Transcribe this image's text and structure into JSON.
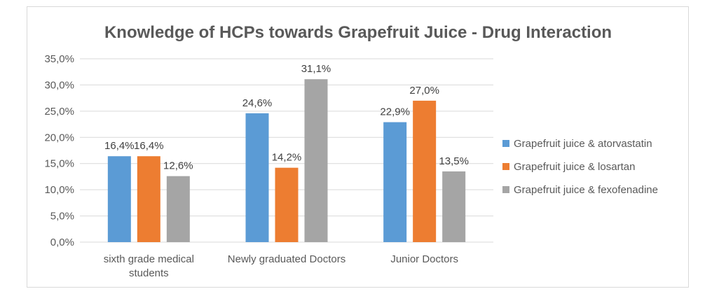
{
  "chart_data": {
    "type": "bar",
    "title": "Knowledge of HCPs towards Grapefruit Juice - Drug Interaction",
    "categories": [
      [
        "sixth grade medical",
        "students"
      ],
      [
        "Newly graduated Doctors"
      ],
      [
        "Junior  Doctors"
      ]
    ],
    "series": [
      {
        "name": "Grapefruit juice &  atorvastatin",
        "color": "#5b9bd5",
        "values": [
          16.4,
          24.6,
          22.9
        ],
        "labels": [
          "16,4%",
          "24,6%",
          "22,9%"
        ]
      },
      {
        "name": "Grapefruit juice & losartan",
        "color": "#ed7d31",
        "values": [
          16.4,
          14.2,
          27.0
        ],
        "labels": [
          "16,4%",
          "14,2%",
          "27,0%"
        ]
      },
      {
        "name": "Grapefruit juice & fexofenadine",
        "color": "#a5a5a5",
        "values": [
          12.6,
          31.1,
          13.5
        ],
        "labels": [
          "12,6%",
          "31,1%",
          "13,5%"
        ]
      }
    ],
    "ylim": [
      0,
      35
    ],
    "yticks": [
      0,
      5,
      10,
      15,
      20,
      25,
      30,
      35
    ],
    "ytick_labels": [
      "0,0%",
      "5,0%",
      "10,0%",
      "15,0%",
      "20,0%",
      "25,0%",
      "30,0%",
      "35,0%"
    ],
    "grid": true,
    "legend_position": "right",
    "gridline_color": "#d9d9d9"
  }
}
